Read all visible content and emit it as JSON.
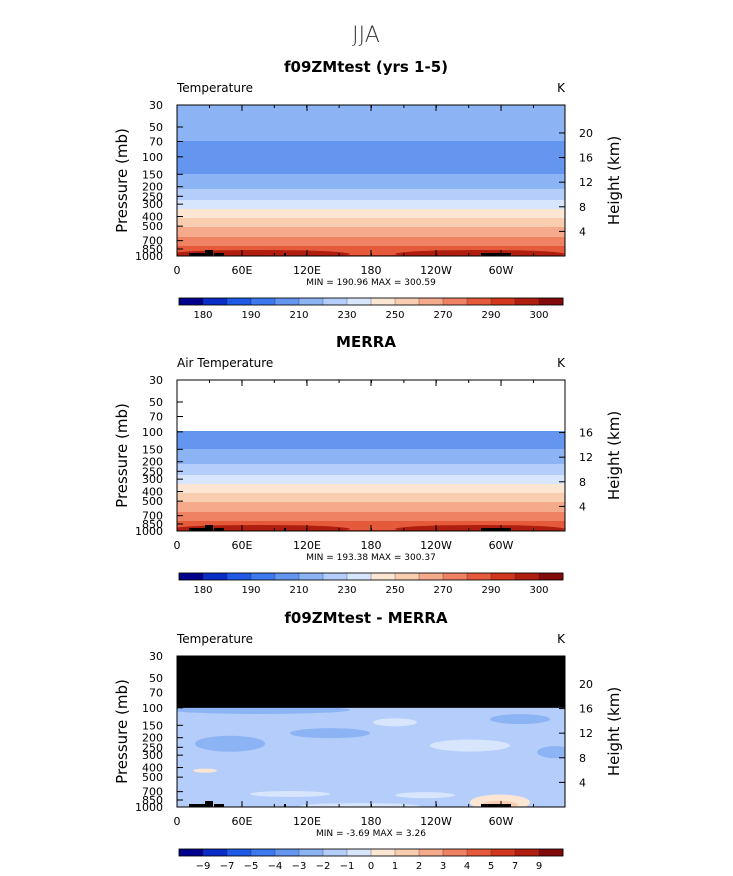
{
  "page_title": "JJA",
  "colors": {
    "temp_palette": [
      "#00008c",
      "#0a2dc8",
      "#1e5ae6",
      "#3c78f0",
      "#6496f0",
      "#8cb4f5",
      "#b4cdfa",
      "#d7e6fc",
      "#fbe6d4",
      "#f8cdb0",
      "#f5aa8c",
      "#f08264",
      "#e65a3c",
      "#d2371e",
      "#af1e0f",
      "#820a0a"
    ],
    "diff_palette": [
      "#00008c",
      "#0a2dc8",
      "#1e5ae6",
      "#3c78f0",
      "#6496f0",
      "#8cb4f5",
      "#b4cdfa",
      "#d7e6fc",
      "#fbe6d4",
      "#f8cdb0",
      "#f5aa8c",
      "#f08264",
      "#e65a3c",
      "#d2371e",
      "#af1e0f",
      "#820a0a"
    ]
  },
  "chart_data": [
    {
      "type": "heatmap",
      "title": "f09ZMtest (yrs 1-5)",
      "left_label": "Temperature",
      "units": "K",
      "ylabel": "Pressure  (mb)",
      "ylabel_right": "Height  (km)",
      "pressure_ticks": [
        "30",
        "50",
        "70",
        "100",
        "150",
        "200",
        "250",
        "300",
        "400",
        "500",
        "700",
        "850",
        "1000"
      ],
      "height_ticks": [
        "20",
        "16",
        "12",
        "8",
        "4"
      ],
      "x_ticks": [
        "0",
        "60E",
        "120E",
        "180",
        "120W",
        "60W"
      ],
      "stats": "MIN = 190.96   MAX = 300.59",
      "colorbar_labels": [
        "180",
        "190",
        "210",
        "230",
        "250",
        "270",
        "290",
        "300"
      ],
      "min": 190.96,
      "max": 300.59,
      "data_top_mb": 30,
      "masked_above_mb": null
    },
    {
      "type": "heatmap",
      "title": "MERRA",
      "left_label": "Air Temperature",
      "units": "K",
      "ylabel": "Pressure  (mb)",
      "ylabel_right": "Height  (km)",
      "pressure_ticks": [
        "30",
        "50",
        "70",
        "100",
        "150",
        "200",
        "250",
        "300",
        "400",
        "500",
        "700",
        "850",
        "1000"
      ],
      "height_ticks": [
        "16",
        "12",
        "8",
        "4"
      ],
      "x_ticks": [
        "0",
        "60E",
        "120E",
        "180",
        "120W",
        "60W"
      ],
      "stats": "MIN = 193.38   MAX = 300.37",
      "colorbar_labels": [
        "180",
        "190",
        "210",
        "230",
        "250",
        "270",
        "290",
        "300"
      ],
      "min": 193.38,
      "max": 300.37,
      "data_top_mb": 100,
      "masked_above_mb": null
    },
    {
      "type": "heatmap",
      "title": "f09ZMtest - MERRA",
      "left_label": "Temperature",
      "units": "K",
      "ylabel": "Pressure  (mb)",
      "ylabel_right": "Height  (km)",
      "pressure_ticks": [
        "30",
        "50",
        "70",
        "100",
        "150",
        "200",
        "250",
        "300",
        "400",
        "500",
        "700",
        "850",
        "1000"
      ],
      "height_ticks": [
        "20",
        "16",
        "12",
        "8",
        "4"
      ],
      "x_ticks": [
        "0",
        "60E",
        "120E",
        "180",
        "120W",
        "60W"
      ],
      "stats": "MIN =   -3.69   MAX =    3.26",
      "colorbar_labels": [
        "−9",
        "−7",
        "−5",
        "−4",
        "−3",
        "−2",
        "−1",
        "0",
        "1",
        "2",
        "3",
        "4",
        "5",
        "7",
        "9"
      ],
      "min": -3.69,
      "max": 3.26,
      "data_top_mb": 30,
      "masked_above_mb": 100
    }
  ]
}
